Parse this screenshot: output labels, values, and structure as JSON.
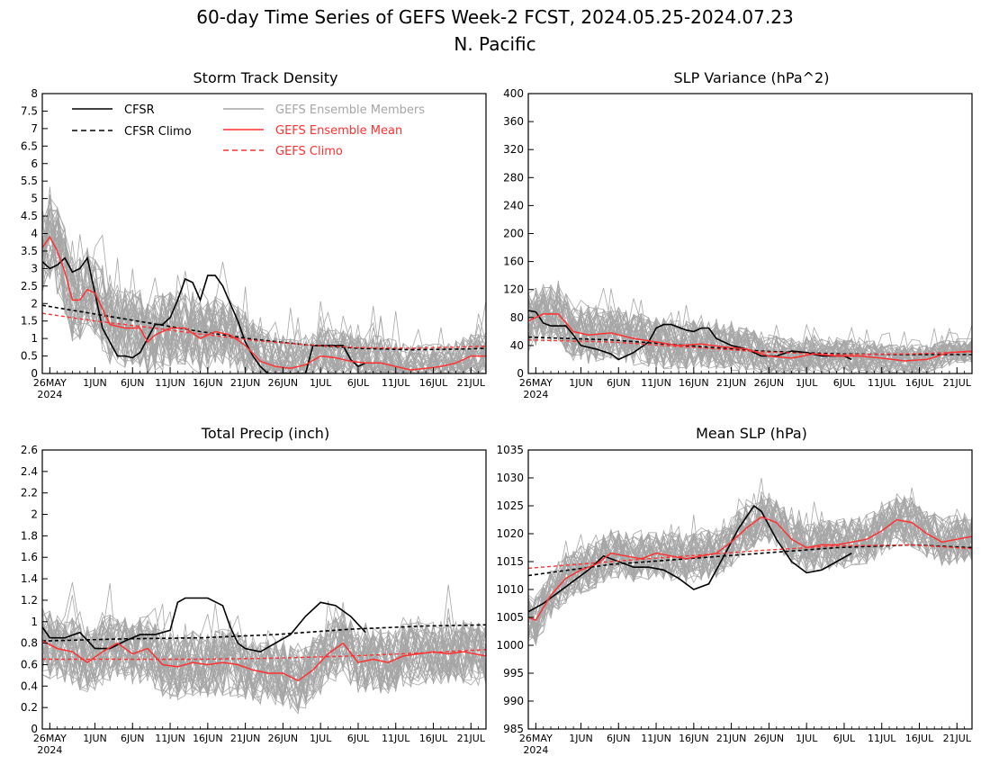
{
  "figure": {
    "title_line1": "60-day Time Series of GEFS Week-2 FCST, 2024.05.25-2024.07.23",
    "title_line2": "N. Pacific"
  },
  "legend": {
    "cfsr": "CFSR",
    "cfsr_climo": "CFSR Climo",
    "members": "GEFS Ensemble Members",
    "mean": "GEFS Ensemble Mean",
    "gefs_climo": "GEFS Climo"
  },
  "colors": {
    "cfsr": "#000000",
    "members": "#a6a6a6",
    "mean": "#ff3030",
    "gefs_climo": "#ff3030",
    "legend_members_text": "#a6a6a6",
    "legend_red_text": "#ff3030"
  },
  "x_axis": {
    "start_date": "2024-05-25",
    "days": 60,
    "tick_labels": [
      "26MAY",
      "1JUN",
      "6JUN",
      "11JUN",
      "16JUN",
      "21JUN",
      "26JUN",
      "1JUL",
      "6JUL",
      "11JUL",
      "16JUL",
      "21JUL"
    ],
    "tick_dates": [
      "2024-05-26",
      "2024-06-01",
      "2024-06-06",
      "2024-06-11",
      "2024-06-16",
      "2024-06-21",
      "2024-06-26",
      "2024-07-01",
      "2024-07-06",
      "2024-07-11",
      "2024-07-16",
      "2024-07-21"
    ],
    "year_label": "2024"
  },
  "chart_data": [
    {
      "id": "storm",
      "type": "line",
      "title": "Storm Track Density",
      "ylim": [
        0,
        8
      ],
      "yticks": [
        "0",
        "0.5",
        "1",
        "1.5",
        "2",
        "2.5",
        "3",
        "3.5",
        "4",
        "4.5",
        "5",
        "5.5",
        "6",
        "6.5",
        "7",
        "7.5",
        "8"
      ],
      "ytick_values": [
        0,
        0.5,
        1,
        1.5,
        2,
        2.5,
        3,
        3.5,
        4,
        4.5,
        5,
        5.5,
        6,
        6.5,
        7,
        7.5,
        8
      ],
      "legend": true,
      "members": {
        "count": 40,
        "spread_start": 1.3,
        "spread_end": 0.6,
        "spike": 1.2,
        "seed": 11
      },
      "series": [
        {
          "name": "CFSR",
          "style": "cfsr",
          "x": [
            "2024-05-25",
            "2024-05-26",
            "2024-05-27",
            "2024-05-28",
            "2024-05-29",
            "2024-05-30",
            "2024-05-31",
            "2024-06-01",
            "2024-06-02",
            "2024-06-04",
            "2024-06-05",
            "2024-06-06",
            "2024-06-07",
            "2024-06-09",
            "2024-06-10",
            "2024-06-11",
            "2024-06-12",
            "2024-06-13",
            "2024-06-14",
            "2024-06-15",
            "2024-06-16",
            "2024-06-17",
            "2024-06-18",
            "2024-06-19",
            "2024-06-20",
            "2024-06-21",
            "2024-06-22",
            "2024-06-23",
            "2024-06-24",
            "2024-06-29",
            "2024-06-30",
            "2024-07-01",
            "2024-07-02",
            "2024-07-03",
            "2024-07-04",
            "2024-07-05",
            "2024-07-06",
            "2024-07-07"
          ],
          "y": [
            3.2,
            3.0,
            3.1,
            3.3,
            2.9,
            3.0,
            3.3,
            2.3,
            1.3,
            0.5,
            0.5,
            0.45,
            0.6,
            1.4,
            1.4,
            1.6,
            2.1,
            2.7,
            2.6,
            2.1,
            2.8,
            2.8,
            2.5,
            2.0,
            1.5,
            0.9,
            0.5,
            0.2,
            0.0,
            0.0,
            0.8,
            0.8,
            0.8,
            0.8,
            0.8,
            0.4,
            0.2,
            0.3
          ]
        },
        {
          "name": "CFSR Climo",
          "style": "cfsr-climo",
          "x": [
            "2024-05-25",
            "2024-06-01",
            "2024-06-08",
            "2024-06-15",
            "2024-06-22",
            "2024-06-29",
            "2024-07-06",
            "2024-07-13",
            "2024-07-20",
            "2024-07-23"
          ],
          "y": [
            1.95,
            1.7,
            1.45,
            1.2,
            0.98,
            0.82,
            0.72,
            0.68,
            0.7,
            0.72
          ]
        },
        {
          "name": "GEFS Ensemble Mean",
          "style": "mean",
          "x": [
            "2024-05-25",
            "2024-05-26",
            "2024-05-27",
            "2024-05-28",
            "2024-05-29",
            "2024-05-30",
            "2024-05-31",
            "2024-06-01",
            "2024-06-03",
            "2024-06-05",
            "2024-06-07",
            "2024-06-08",
            "2024-06-09",
            "2024-06-11",
            "2024-06-13",
            "2024-06-15",
            "2024-06-17",
            "2024-06-19",
            "2024-06-21",
            "2024-06-23",
            "2024-06-25",
            "2024-06-27",
            "2024-06-29",
            "2024-07-01",
            "2024-07-03",
            "2024-07-05",
            "2024-07-07",
            "2024-07-09",
            "2024-07-11",
            "2024-07-13",
            "2024-07-15",
            "2024-07-17",
            "2024-07-19",
            "2024-07-21",
            "2024-07-23"
          ],
          "y": [
            3.6,
            3.9,
            3.5,
            2.9,
            2.1,
            2.1,
            2.4,
            2.3,
            1.4,
            1.3,
            1.3,
            0.9,
            1.1,
            1.3,
            1.3,
            1.0,
            1.2,
            1.1,
            0.8,
            0.35,
            0.2,
            0.15,
            0.25,
            0.5,
            0.45,
            0.35,
            0.3,
            0.3,
            0.2,
            0.1,
            0.15,
            0.2,
            0.3,
            0.5,
            0.5
          ]
        },
        {
          "name": "GEFS Climo",
          "style": "gefs-climo",
          "x": [
            "2024-05-25",
            "2024-06-01",
            "2024-06-08",
            "2024-06-15",
            "2024-06-22",
            "2024-06-29",
            "2024-07-06",
            "2024-07-13",
            "2024-07-20",
            "2024-07-23"
          ],
          "y": [
            1.72,
            1.5,
            1.32,
            1.13,
            0.95,
            0.82,
            0.74,
            0.72,
            0.76,
            0.78
          ]
        }
      ]
    },
    {
      "id": "slpvar",
      "type": "line",
      "title": "SLP Variance (hPa^2)",
      "ylim": [
        0,
        400
      ],
      "yticks": [
        "0",
        "40",
        "80",
        "120",
        "160",
        "200",
        "240",
        "280",
        "320",
        "360",
        "400"
      ],
      "ytick_values": [
        0,
        40,
        80,
        120,
        160,
        200,
        240,
        280,
        320,
        360,
        400
      ],
      "legend": false,
      "members": {
        "count": 40,
        "spread_start": 45,
        "spread_end": 18,
        "spike": 30,
        "seed": 23
      },
      "series": [
        {
          "name": "CFSR",
          "style": "cfsr",
          "x": [
            "2024-05-25",
            "2024-05-26",
            "2024-05-27",
            "2024-05-28",
            "2024-05-30",
            "2024-05-31",
            "2024-06-01",
            "2024-06-03",
            "2024-06-05",
            "2024-06-06",
            "2024-06-08",
            "2024-06-10",
            "2024-06-11",
            "2024-06-12",
            "2024-06-13",
            "2024-06-15",
            "2024-06-16",
            "2024-06-17",
            "2024-06-18",
            "2024-06-19",
            "2024-06-21",
            "2024-06-23",
            "2024-06-25",
            "2024-06-27",
            "2024-06-29",
            "2024-07-01",
            "2024-07-03",
            "2024-07-05",
            "2024-07-06",
            "2024-07-07"
          ],
          "y": [
            90,
            88,
            72,
            68,
            68,
            55,
            40,
            35,
            28,
            20,
            30,
            45,
            65,
            70,
            70,
            62,
            60,
            65,
            65,
            50,
            40,
            35,
            25,
            25,
            32,
            30,
            25,
            25,
            25,
            20
          ]
        },
        {
          "name": "CFSR Climo",
          "style": "cfsr-climo",
          "x": [
            "2024-05-25",
            "2024-06-05",
            "2024-06-15",
            "2024-06-25",
            "2024-07-05",
            "2024-07-15",
            "2024-07-23"
          ],
          "y": [
            52,
            48,
            40,
            32,
            28,
            27,
            27
          ]
        },
        {
          "name": "GEFS Ensemble Mean",
          "style": "mean",
          "x": [
            "2024-05-25",
            "2024-05-27",
            "2024-05-29",
            "2024-05-31",
            "2024-06-02",
            "2024-06-05",
            "2024-06-08",
            "2024-06-11",
            "2024-06-14",
            "2024-06-17",
            "2024-06-20",
            "2024-06-23",
            "2024-06-26",
            "2024-06-29",
            "2024-07-02",
            "2024-07-05",
            "2024-07-08",
            "2024-07-11",
            "2024-07-14",
            "2024-07-17",
            "2024-07-20",
            "2024-07-23"
          ],
          "y": [
            75,
            85,
            85,
            60,
            55,
            58,
            50,
            45,
            40,
            42,
            38,
            35,
            25,
            22,
            28,
            25,
            25,
            22,
            18,
            20,
            30,
            32
          ]
        },
        {
          "name": "GEFS Climo",
          "style": "gefs-climo",
          "x": [
            "2024-05-25",
            "2024-06-05",
            "2024-06-15",
            "2024-06-25",
            "2024-07-05",
            "2024-07-15",
            "2024-07-23"
          ],
          "y": [
            48,
            45,
            38,
            31,
            27,
            28,
            31
          ]
        }
      ]
    },
    {
      "id": "precip",
      "type": "line",
      "title": "Total Precip (inch)",
      "ylim": [
        0,
        2.6
      ],
      "yticks": [
        "0",
        "0.2",
        "0.4",
        "0.6",
        "0.8",
        "1",
        "1.2",
        "1.4",
        "1.6",
        "1.8",
        "2",
        "2.2",
        "2.4",
        "2.6"
      ],
      "ytick_values": [
        0,
        0.2,
        0.4,
        0.6,
        0.8,
        1,
        1.2,
        1.4,
        1.6,
        1.8,
        2,
        2.2,
        2.4,
        2.6
      ],
      "legend": false,
      "members": {
        "count": 40,
        "spread_start": 0.32,
        "spread_end": 0.3,
        "spike": 0.35,
        "seed": 37
      },
      "series": [
        {
          "name": "CFSR",
          "style": "cfsr",
          "x": [
            "2024-05-25",
            "2024-05-26",
            "2024-05-28",
            "2024-05-30",
            "2024-06-01",
            "2024-06-03",
            "2024-06-05",
            "2024-06-07",
            "2024-06-09",
            "2024-06-11",
            "2024-06-12",
            "2024-06-13",
            "2024-06-14",
            "2024-06-16",
            "2024-06-18",
            "2024-06-19",
            "2024-06-20",
            "2024-06-21",
            "2024-06-23",
            "2024-06-25",
            "2024-06-27",
            "2024-06-29",
            "2024-07-01",
            "2024-07-03",
            "2024-07-05",
            "2024-07-07"
          ],
          "y": [
            0.95,
            0.85,
            0.85,
            0.9,
            0.75,
            0.75,
            0.82,
            0.88,
            0.88,
            0.92,
            1.18,
            1.22,
            1.22,
            1.22,
            1.15,
            0.95,
            0.8,
            0.75,
            0.72,
            0.8,
            0.88,
            1.05,
            1.18,
            1.15,
            1.05,
            0.9
          ]
        },
        {
          "name": "CFSR Climo",
          "style": "cfsr-climo",
          "x": [
            "2024-05-25",
            "2024-06-05",
            "2024-06-15",
            "2024-06-25",
            "2024-07-05",
            "2024-07-15",
            "2024-07-23"
          ],
          "y": [
            0.82,
            0.84,
            0.85,
            0.88,
            0.93,
            0.96,
            0.97
          ]
        },
        {
          "name": "GEFS Ensemble Mean",
          "style": "mean",
          "x": [
            "2024-05-25",
            "2024-05-27",
            "2024-05-29",
            "2024-05-31",
            "2024-06-02",
            "2024-06-04",
            "2024-06-06",
            "2024-06-08",
            "2024-06-10",
            "2024-06-12",
            "2024-06-14",
            "2024-06-16",
            "2024-06-18",
            "2024-06-20",
            "2024-06-22",
            "2024-06-24",
            "2024-06-26",
            "2024-06-28",
            "2024-06-30",
            "2024-07-02",
            "2024-07-04",
            "2024-07-06",
            "2024-07-08",
            "2024-07-10",
            "2024-07-12",
            "2024-07-14",
            "2024-07-16",
            "2024-07-18",
            "2024-07-20",
            "2024-07-23"
          ],
          "y": [
            0.82,
            0.75,
            0.72,
            0.62,
            0.72,
            0.8,
            0.7,
            0.75,
            0.6,
            0.58,
            0.62,
            0.6,
            0.62,
            0.6,
            0.55,
            0.52,
            0.52,
            0.45,
            0.55,
            0.7,
            0.8,
            0.62,
            0.65,
            0.62,
            0.68,
            0.7,
            0.72,
            0.7,
            0.72,
            0.68
          ]
        },
        {
          "name": "GEFS Climo",
          "style": "gefs-climo",
          "x": [
            "2024-05-25",
            "2024-06-05",
            "2024-06-15",
            "2024-06-25",
            "2024-07-05",
            "2024-07-15",
            "2024-07-23"
          ],
          "y": [
            0.65,
            0.65,
            0.65,
            0.66,
            0.68,
            0.71,
            0.74
          ]
        }
      ]
    },
    {
      "id": "mslp",
      "type": "line",
      "title": "Mean SLP (hPa)",
      "ylim": [
        985,
        1035
      ],
      "yticks": [
        "985",
        "990",
        "995",
        "1000",
        "1005",
        "1010",
        "1015",
        "1020",
        "1025",
        "1030",
        "1035"
      ],
      "ytick_values": [
        985,
        990,
        995,
        1000,
        1005,
        1010,
        1015,
        1020,
        1025,
        1030,
        1035
      ],
      "legend": false,
      "members": {
        "count": 40,
        "spread_start": 4.5,
        "spread_end": 4.5,
        "spike": 4,
        "seed": 53
      },
      "series": [
        {
          "name": "CFSR",
          "style": "cfsr",
          "x": [
            "2024-05-25",
            "2024-05-27",
            "2024-05-29",
            "2024-05-31",
            "2024-06-02",
            "2024-06-04",
            "2024-06-06",
            "2024-06-08",
            "2024-06-10",
            "2024-06-12",
            "2024-06-14",
            "2024-06-16",
            "2024-06-18",
            "2024-06-20",
            "2024-06-22",
            "2024-06-24",
            "2024-06-25",
            "2024-06-27",
            "2024-06-29",
            "2024-07-01",
            "2024-07-03",
            "2024-07-05",
            "2024-07-07"
          ],
          "y": [
            1006,
            1007.5,
            1009.5,
            1011.5,
            1013.5,
            1016,
            1015,
            1014,
            1014,
            1013.5,
            1012,
            1010,
            1011,
            1016,
            1021,
            1025,
            1024,
            1019,
            1015,
            1013,
            1013.5,
            1015,
            1016.5
          ]
        },
        {
          "name": "CFSR Climo",
          "style": "cfsr-climo",
          "x": [
            "2024-05-25",
            "2024-06-05",
            "2024-06-15",
            "2024-06-25",
            "2024-07-05",
            "2024-07-15",
            "2024-07-23"
          ],
          "y": [
            1012.5,
            1014.5,
            1015.5,
            1016.5,
            1017.5,
            1018,
            1017.5
          ]
        },
        {
          "name": "GEFS Ensemble Mean",
          "style": "mean",
          "x": [
            "2024-05-25",
            "2024-05-26",
            "2024-05-28",
            "2024-05-30",
            "2024-06-01",
            "2024-06-03",
            "2024-06-05",
            "2024-06-07",
            "2024-06-09",
            "2024-06-11",
            "2024-06-13",
            "2024-06-15",
            "2024-06-17",
            "2024-06-19",
            "2024-06-21",
            "2024-06-23",
            "2024-06-25",
            "2024-06-27",
            "2024-06-29",
            "2024-07-01",
            "2024-07-03",
            "2024-07-05",
            "2024-07-07",
            "2024-07-09",
            "2024-07-11",
            "2024-07-13",
            "2024-07-15",
            "2024-07-17",
            "2024-07-19",
            "2024-07-21",
            "2024-07-23"
          ],
          "y": [
            1005,
            1004.5,
            1009,
            1012,
            1013.5,
            1014.5,
            1016.5,
            1016,
            1015.5,
            1016.5,
            1016,
            1015.5,
            1016,
            1016.5,
            1018.5,
            1021,
            1023,
            1022,
            1019,
            1017.5,
            1018,
            1018,
            1018.5,
            1019,
            1020.5,
            1022.5,
            1022,
            1020,
            1018.5,
            1019,
            1019.5
          ]
        },
        {
          "name": "GEFS Climo",
          "style": "gefs-climo",
          "x": [
            "2024-05-25",
            "2024-06-05",
            "2024-06-15",
            "2024-06-25",
            "2024-07-05",
            "2024-07-15",
            "2024-07-23"
          ],
          "y": [
            1013.8,
            1015,
            1016,
            1017,
            1017.8,
            1018,
            1017.3
          ]
        }
      ]
    }
  ]
}
